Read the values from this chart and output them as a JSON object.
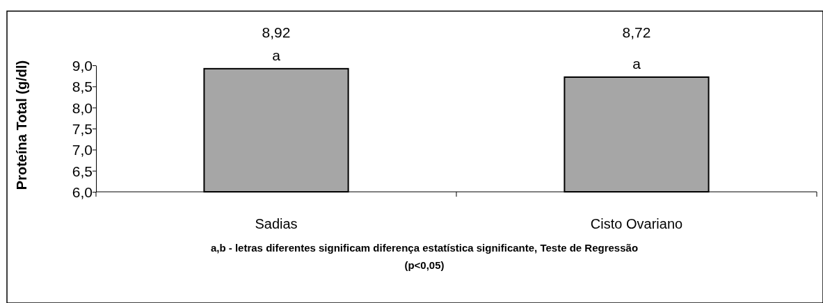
{
  "chart_data": {
    "type": "bar",
    "ylabel": "Proteína Total (g/dl)",
    "categories": [
      "Sadias",
      "Cisto Ovariano"
    ],
    "values": [
      8.92,
      8.72
    ],
    "value_labels": [
      "8,92",
      "8,72"
    ],
    "color": "#a6a6a6",
    "ylim": [
      6,
      9
    ],
    "yticks": [
      {
        "value": 6,
        "label": "6,0"
      },
      {
        "value": 6.5,
        "label": "6,5"
      },
      {
        "value": 7,
        "label": "7,0"
      },
      {
        "value": 7.5,
        "label": "7,5"
      },
      {
        "value": 8,
        "label": "8,0"
      },
      {
        "value": 8.5,
        "label": "8,5"
      },
      {
        "value": 9,
        "label": "9,0"
      }
    ],
    "annotations": [
      {
        "text": "a",
        "x": "Sadias",
        "y": 8.92
      },
      {
        "text": "a",
        "x": "Cisto Ovariano",
        "y": 8.72
      },
      "a,b - letras diferentes significam diferença estatística significante, Teste de Regressão (p<0,05)"
    ],
    "grid": false
  }
}
